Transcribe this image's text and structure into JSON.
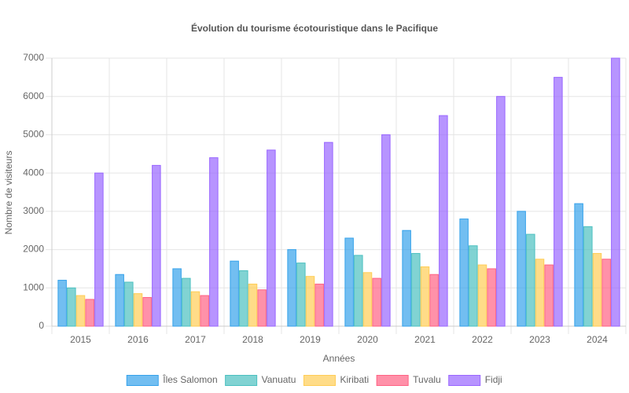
{
  "chart_data": {
    "type": "bar",
    "title": "Évolution du tourisme écotouristique dans le Pacifique",
    "x_label": "Années",
    "y_label": "Nombre de visiteurs",
    "categories": [
      "2015",
      "2016",
      "2017",
      "2018",
      "2019",
      "2020",
      "2021",
      "2022",
      "2023",
      "2024"
    ],
    "series": [
      {
        "name": "Îles Salomon",
        "color": "#36a2eb",
        "values": [
          1200,
          1350,
          1500,
          1700,
          2000,
          2300,
          2500,
          2800,
          3000,
          3200
        ]
      },
      {
        "name": "Vanuatu",
        "color": "#4bc0c0",
        "values": [
          1000,
          1150,
          1250,
          1450,
          1650,
          1850,
          1900,
          2100,
          2400,
          2600
        ]
      },
      {
        "name": "Kiribati",
        "color": "#ffcd56",
        "values": [
          800,
          850,
          900,
          1100,
          1300,
          1400,
          1550,
          1600,
          1750,
          1900
        ]
      },
      {
        "name": "Tuvalu",
        "color": "#ff6384",
        "values": [
          700,
          750,
          800,
          950,
          1100,
          1250,
          1350,
          1500,
          1600,
          1750
        ]
      },
      {
        "name": "Fidji",
        "color": "#9966ff",
        "values": [
          4000,
          4200,
          4400,
          4600,
          4800,
          5000,
          5500,
          6000,
          6500,
          7000
        ]
      }
    ],
    "ylim": [
      0,
      7000
    ],
    "yticks": [
      0,
      1000,
      2000,
      3000,
      4000,
      5000,
      6000,
      7000
    ],
    "grid": true,
    "legend": "bottom"
  }
}
